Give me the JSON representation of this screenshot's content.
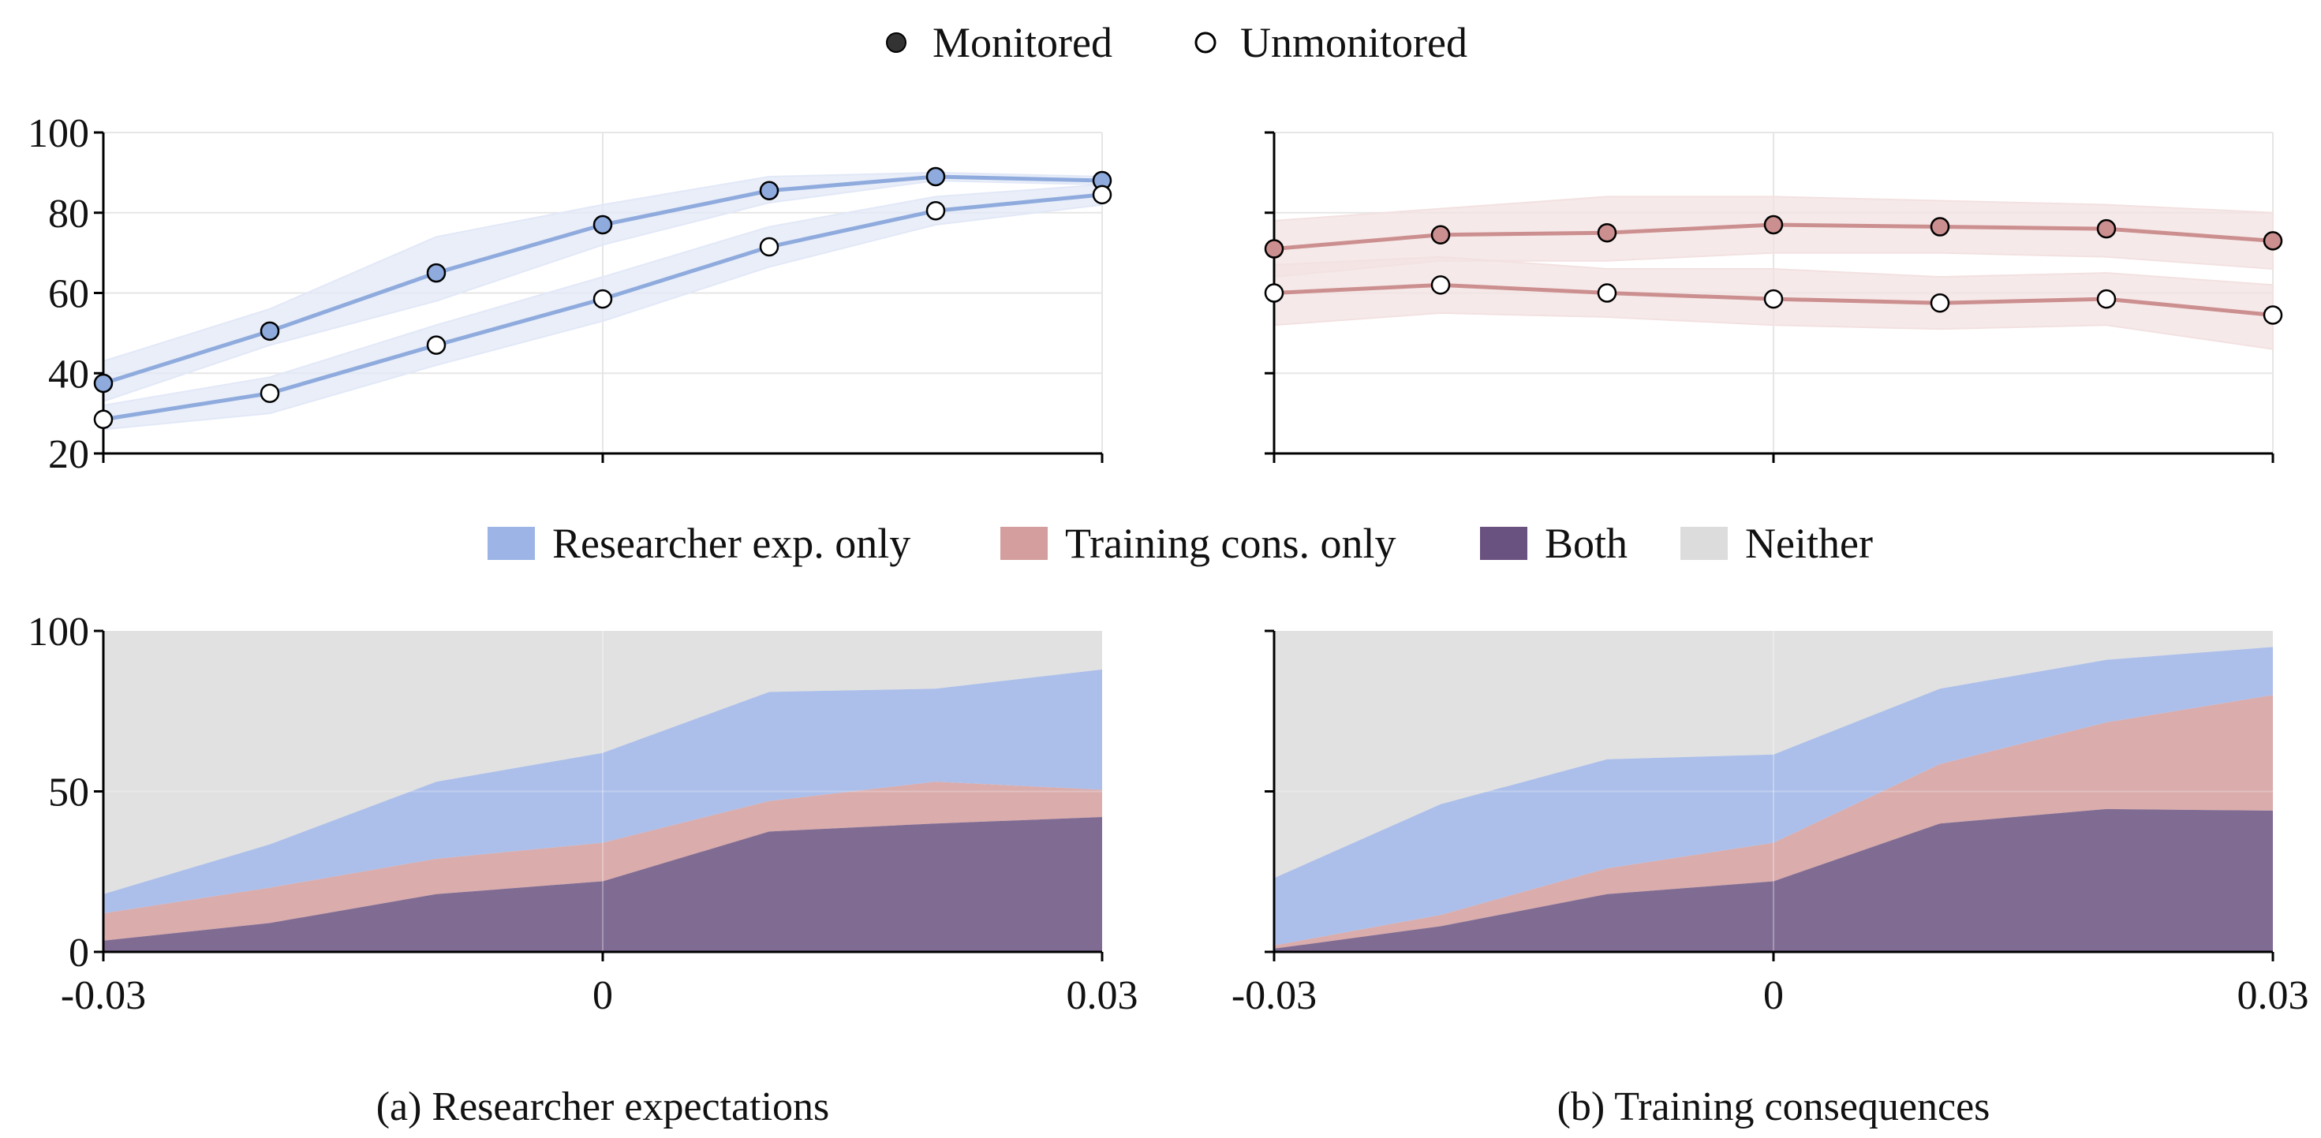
{
  "top_legend": [
    {
      "label": "Monitored",
      "marker": "filled",
      "color": "#333333"
    },
    {
      "label": "Unmonitored",
      "marker": "open",
      "color": "#ffffff"
    }
  ],
  "area_legend": [
    {
      "label": "Researcher exp. only",
      "color": "#9db4e6"
    },
    {
      "label": "Training cons. only",
      "color": "#d49e9e"
    },
    {
      "label": "Both",
      "color": "#6a5280"
    },
    {
      "label": "Neither",
      "color": "#dcdcdc"
    }
  ],
  "captions": [
    "(a) Researcher expectations",
    "(b) Training consequences"
  ],
  "colors": {
    "blue_line": "#8fabdd",
    "blue_band": "#e2e8f7",
    "red_line": "#cc8f8f",
    "red_band": "#f3e1e1",
    "grid": "#e6e6e6",
    "axis": "#000000"
  },
  "chart_data": [
    {
      "type": "line",
      "panel": "a",
      "x": [
        -0.03,
        -0.02,
        -0.01,
        0,
        0.01,
        0.02,
        0.03
      ],
      "series": [
        {
          "name": "Monitored",
          "values": [
            37.5,
            50.5,
            65,
            77,
            85.5,
            89,
            88
          ],
          "lower": [
            33,
            47,
            58,
            72,
            82.5,
            88,
            87
          ],
          "upper": [
            43,
            56,
            74,
            82,
            89,
            90,
            89
          ]
        },
        {
          "name": "Unmonitored",
          "values": [
            28.5,
            35,
            47,
            58.5,
            71.5,
            80.5,
            84.5
          ],
          "lower": [
            26,
            30,
            42,
            53,
            66.5,
            77,
            82
          ],
          "upper": [
            32,
            39,
            52,
            64,
            76.5,
            84,
            87
          ]
        }
      ],
      "xlim": [
        -0.03,
        0.03
      ],
      "ylim": [
        20,
        100
      ],
      "yticks": [
        "20",
        "40",
        "60",
        "80",
        "100"
      ],
      "grid": true
    },
    {
      "type": "line",
      "panel": "b",
      "x": [
        -0.03,
        -0.02,
        -0.01,
        0,
        0.01,
        0.02,
        0.03
      ],
      "series": [
        {
          "name": "Monitored",
          "values": [
            71,
            74.5,
            75,
            77,
            76.5,
            76,
            73
          ],
          "lower": [
            64,
            68,
            68,
            70,
            70,
            69,
            66
          ],
          "upper": [
            78,
            81,
            84,
            84,
            83,
            82,
            80
          ]
        },
        {
          "name": "Unmonitored",
          "values": [
            60,
            62,
            60,
            58.5,
            57.5,
            58.5,
            54.5
          ],
          "lower": [
            52,
            55,
            54,
            52,
            51,
            52,
            46
          ],
          "upper": [
            67,
            69,
            66,
            66,
            64,
            65,
            62
          ]
        }
      ],
      "xlim": [
        -0.03,
        0.03
      ],
      "ylim": [
        20,
        100
      ],
      "grid": true
    },
    {
      "type": "area",
      "panel": "a",
      "x": [
        -0.03,
        -0.02,
        -0.01,
        0,
        0.01,
        0.02,
        0.03
      ],
      "series": [
        {
          "name": "Both",
          "values": [
            3.5,
            9,
            18,
            22,
            37.5,
            40,
            42
          ]
        },
        {
          "name": "Training cons. only",
          "values": [
            8.5,
            11,
            11,
            12,
            9.5,
            13,
            8.5
          ]
        },
        {
          "name": "Researcher exp. only",
          "values": [
            6,
            13.5,
            24,
            28,
            34,
            29,
            37.5
          ]
        },
        {
          "name": "Neither",
          "values": [
            82,
            66.5,
            47,
            38,
            19,
            18,
            12
          ]
        }
      ],
      "xticks": [
        "-0.03",
        "0",
        "0.03"
      ],
      "xlim": [
        -0.03,
        0.03
      ],
      "ylim": [
        0,
        100
      ],
      "yticks": [
        "0",
        "50",
        "100"
      ],
      "grid": true
    },
    {
      "type": "area",
      "panel": "b",
      "x": [
        -0.03,
        -0.02,
        -0.01,
        0,
        0.01,
        0.02,
        0.03
      ],
      "series": [
        {
          "name": "Both",
          "values": [
            1,
            8,
            18,
            22,
            40,
            44.5,
            44
          ]
        },
        {
          "name": "Training cons. only",
          "values": [
            1,
            3.5,
            8,
            12,
            18.5,
            27,
            36
          ]
        },
        {
          "name": "Researcher exp. only",
          "values": [
            21,
            34.5,
            34,
            27.5,
            23.5,
            19.5,
            15
          ]
        },
        {
          "name": "Neither",
          "values": [
            77,
            54,
            40,
            38.5,
            18,
            9,
            5
          ]
        }
      ],
      "xticks": [
        "-0.03",
        "0",
        "0.03"
      ],
      "xlim": [
        -0.03,
        0.03
      ],
      "ylim": [
        0,
        100
      ],
      "grid": true
    }
  ]
}
